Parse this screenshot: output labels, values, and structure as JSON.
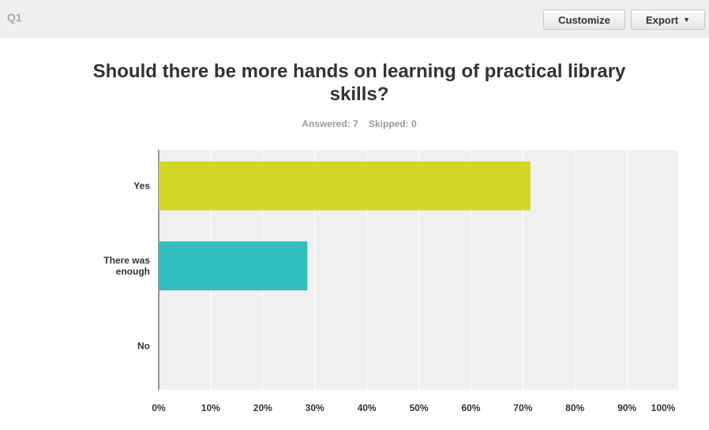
{
  "header": {
    "question_label": "Q1",
    "customize_label": "Customize",
    "export_label": "Export"
  },
  "summary": {
    "answered": "Answered: 7",
    "skipped": "Skipped: 0"
  },
  "colors": {
    "plot_background": "#f0f0f0",
    "gridline": "#ffffff"
  },
  "chart_data": {
    "type": "bar",
    "orientation": "horizontal",
    "title": "Should there be more hands on learning of practical library skills?",
    "categories": [
      "Yes",
      "There was enough",
      "No"
    ],
    "category_lines": [
      [
        "Yes"
      ],
      [
        "There was",
        "enough"
      ],
      [
        "No"
      ]
    ],
    "values": [
      71.43,
      28.57,
      0
    ],
    "colors": [
      "#d1d629",
      "#33bfbf",
      "#e8a33d"
    ],
    "xlim": [
      0,
      100
    ],
    "x_ticks": [
      "0%",
      "10%",
      "20%",
      "30%",
      "40%",
      "50%",
      "60%",
      "70%",
      "80%",
      "90%",
      "100%"
    ],
    "grid": true,
    "legend": false
  }
}
